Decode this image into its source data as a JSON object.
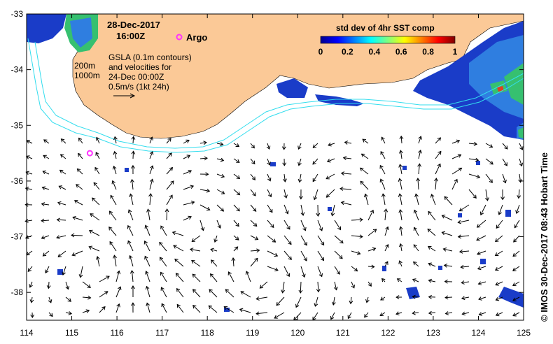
{
  "map": {
    "date": "28-Dec-2017",
    "time": "16:00Z",
    "argo_label": "Argo",
    "gsla_lines": [
      "GSLA (0.1m contours)",
      "and velocities for",
      "24-Dec 00:00Z",
      "0.5m/s (1kt 24h)"
    ],
    "contour_labels": [
      "200m",
      "1000m"
    ],
    "colorbar": {
      "title": "std dev of 4hr SST comp",
      "ticks": [
        "0",
        "0.2",
        "0.4",
        "0.6",
        "0.8",
        "1"
      ]
    },
    "credit": "© IMOS 30-Dec-2017 08:43 Hobart Time",
    "x_ticks": [
      "114",
      "115",
      "116",
      "117",
      "118",
      "119",
      "120",
      "121",
      "122",
      "123",
      "124",
      "125"
    ],
    "y_ticks": [
      "-33",
      "-34",
      "-35",
      "-36",
      "-37",
      "-38"
    ],
    "x_range": [
      114,
      125
    ],
    "y_range": [
      -38.5,
      -33
    ],
    "argo_floats": [
      {
        "lon": 117.3,
        "lat": -33.45
      },
      {
        "lon": 115.4,
        "lat": -35.5
      }
    ],
    "colors": {
      "land": "#fbc997",
      "contour": "#33ddee",
      "argo": "#ff33ff",
      "data_patch": "#1a3cc8"
    }
  }
}
